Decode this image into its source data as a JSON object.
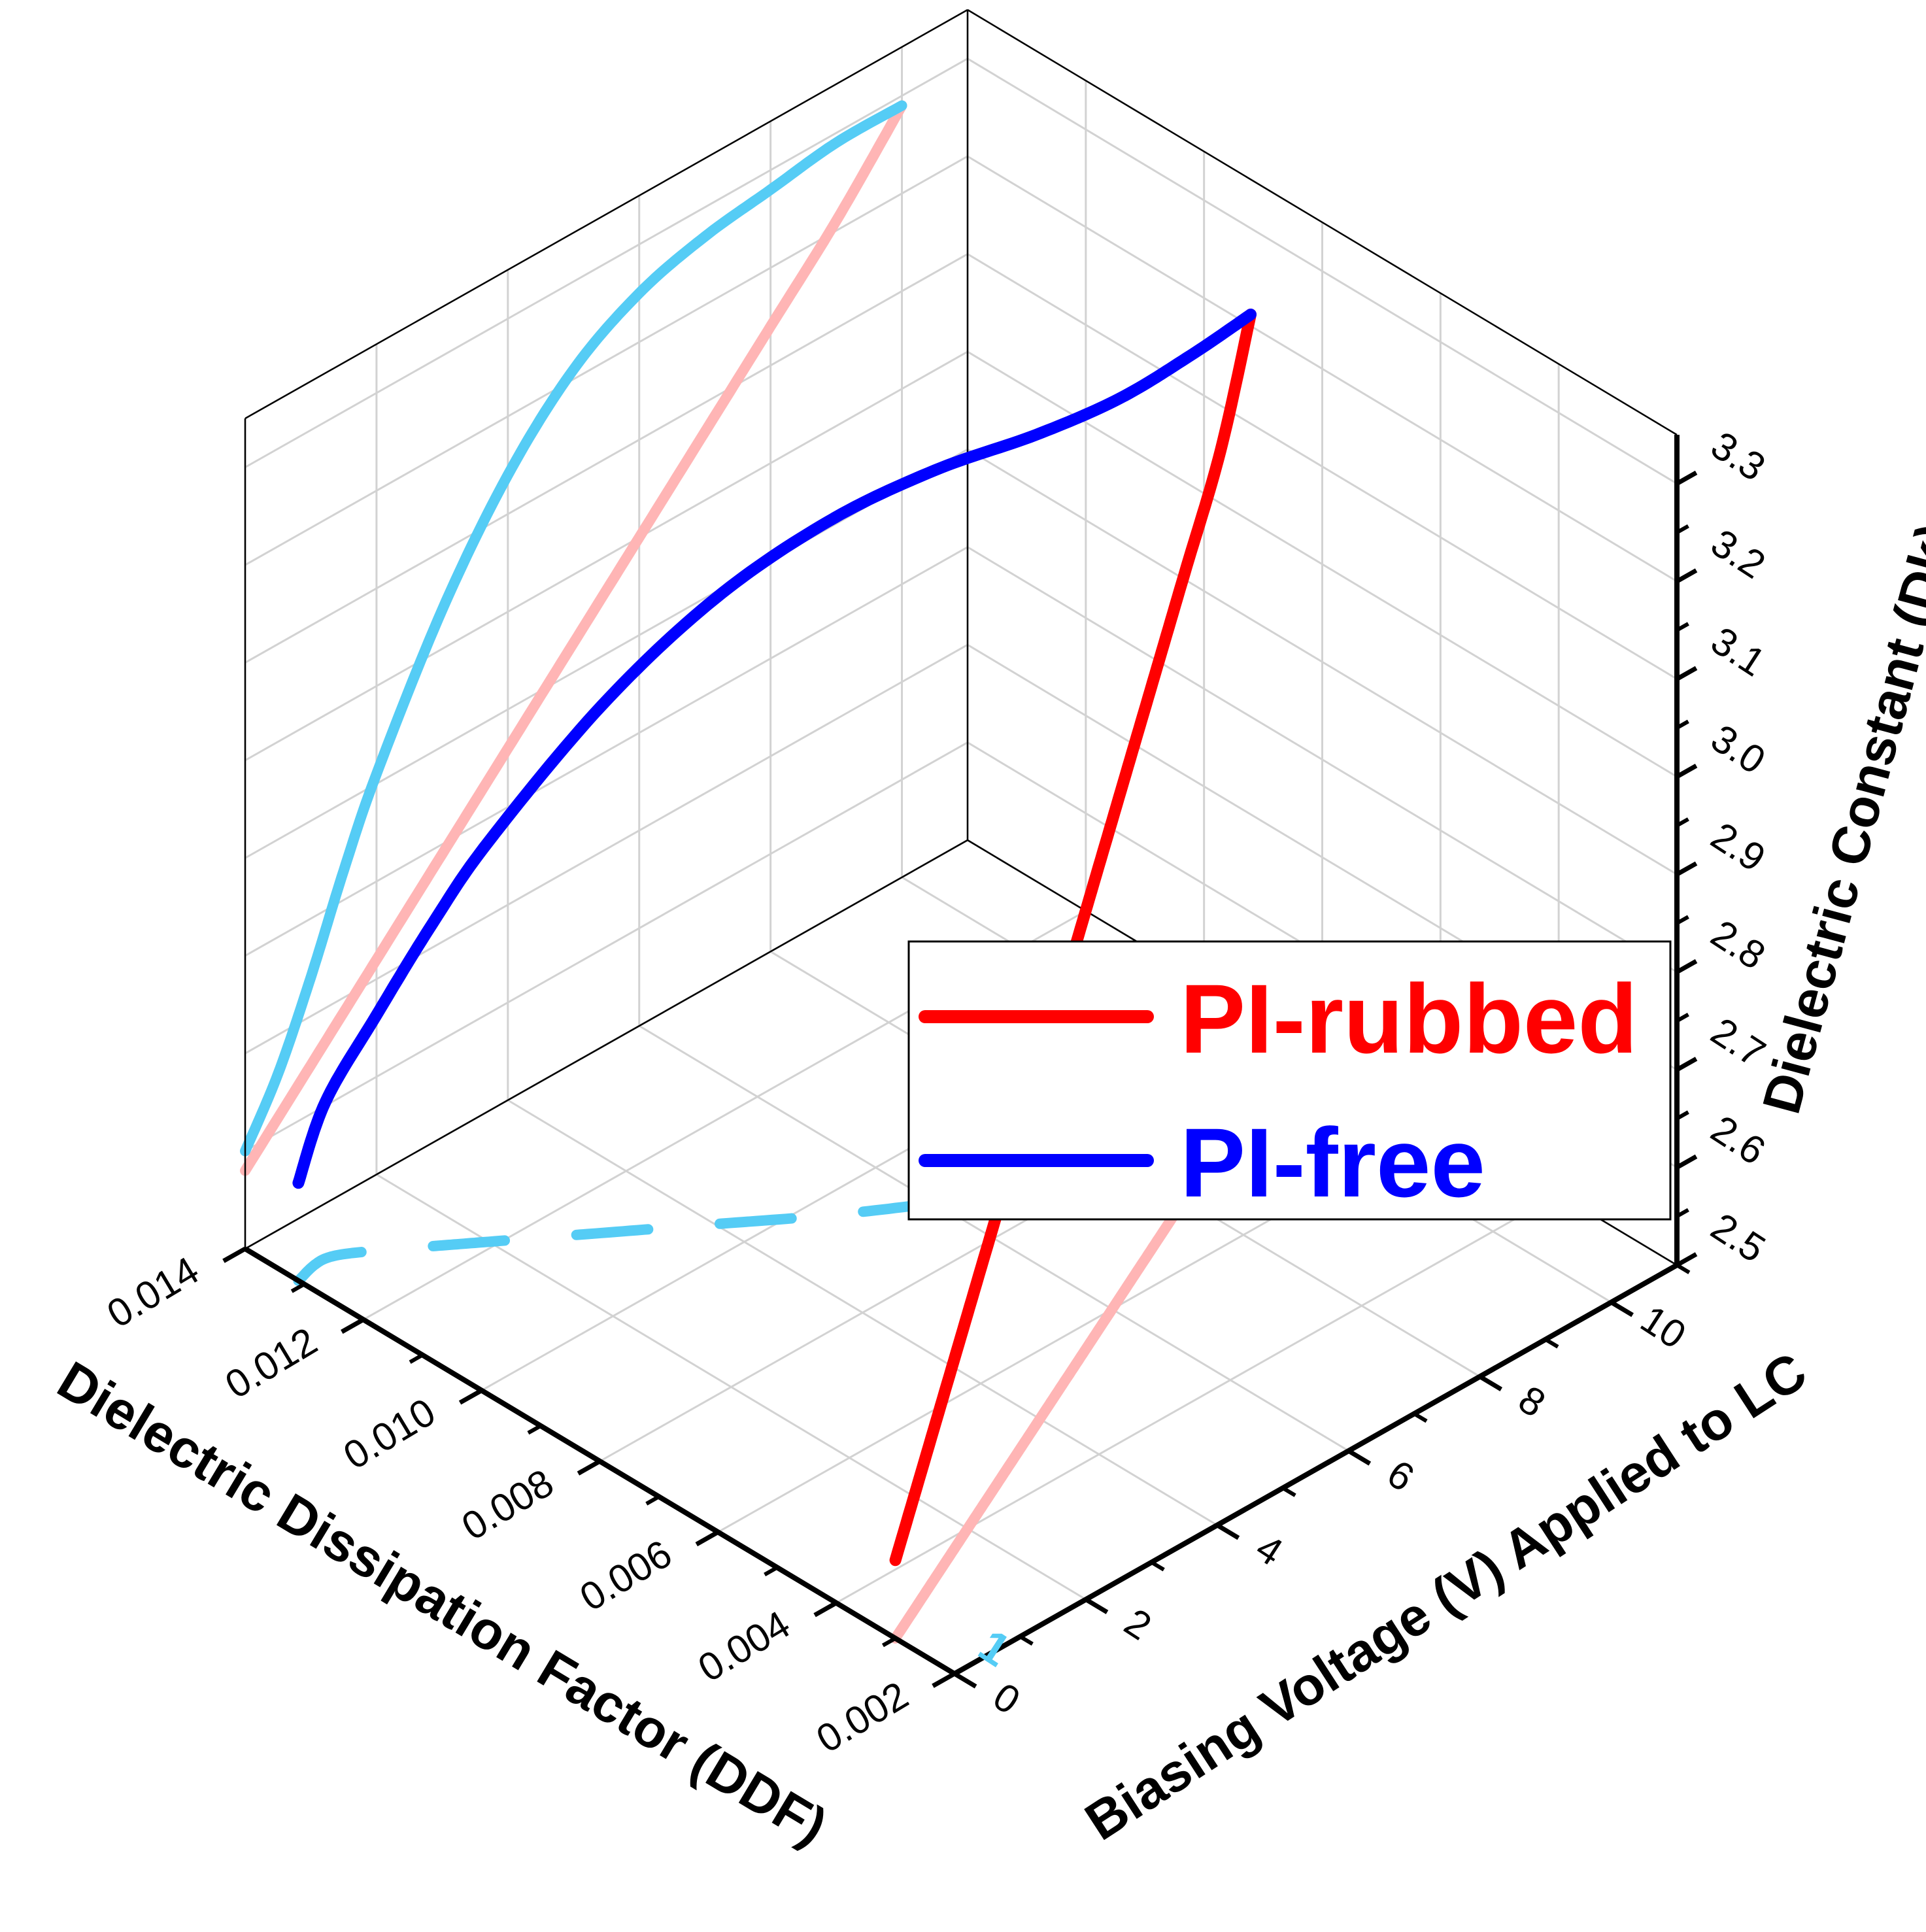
{
  "chart_data": {
    "type": "line",
    "projection": "3d",
    "axes": {
      "x": {
        "label": "Biasing Voltage (V) Applied to LC",
        "range": [
          0,
          11
        ],
        "ticks": [
          0,
          2,
          4,
          6,
          8,
          10
        ],
        "tick_labels": [
          "0",
          "2",
          "4",
          "6",
          "8",
          "10"
        ]
      },
      "y": {
        "label": "Dielectric Dissipation Factor (DDF)",
        "range": [
          0.002,
          0.014
        ],
        "ticks": [
          0.002,
          0.004,
          0.006,
          0.008,
          0.01,
          0.012,
          0.014
        ],
        "tick_labels": [
          "0.002",
          "0.004",
          "0.006",
          "0.008",
          "0.010",
          "0.012",
          "0.014"
        ]
      },
      "z": {
        "label": "Dielectric Constant (Dk)",
        "range": [
          2.5,
          3.35
        ],
        "ticks": [
          2.5,
          2.6,
          2.7,
          2.8,
          2.9,
          3.0,
          3.1,
          3.2,
          3.3
        ],
        "tick_labels": [
          "2.5",
          "2.6",
          "2.7",
          "2.8",
          "2.9",
          "3.0",
          "3.1",
          "3.2",
          "3.3"
        ]
      }
    },
    "grid": true,
    "legend_position": "center-right",
    "series": [
      {
        "name": "PI-rubbed",
        "color": "#ff0000",
        "projection_color": "#ffb5b5",
        "x": [
          0,
          1,
          2,
          3,
          4,
          5,
          6,
          7,
          8,
          9,
          10
        ],
        "y": [
          0.003,
          0.0035,
          0.004,
          0.0045,
          0.005,
          0.0055,
          0.006,
          0.0065,
          0.007,
          0.0075,
          0.0081
        ],
        "z": [
          2.58,
          2.65,
          2.72,
          2.79,
          2.86,
          2.93,
          3.0,
          3.07,
          3.14,
          3.21,
          3.29
        ]
      },
      {
        "name": "PI-free",
        "color": "#0000ff",
        "projection_color": "#55ccf5",
        "x": [
          0,
          0.5,
          1,
          1.5,
          2,
          3,
          4,
          5,
          6,
          7,
          8,
          9,
          10
        ],
        "y": [
          0.0131,
          0.0132,
          0.0129,
          0.0125,
          0.0121,
          0.0113,
          0.0105,
          0.0097,
          0.009,
          0.0084,
          0.0081,
          0.008,
          0.0081
        ],
        "z": [
          2.6,
          2.66,
          2.74,
          2.83,
          2.91,
          3.04,
          3.14,
          3.21,
          3.25,
          3.27,
          3.28,
          3.29,
          3.29
        ]
      }
    ],
    "annotation": "1"
  },
  "legend": {
    "items": [
      {
        "label": "PI-rubbed",
        "color": "#ff0000"
      },
      {
        "label": "PI-free",
        "color": "#0000ff"
      }
    ]
  }
}
